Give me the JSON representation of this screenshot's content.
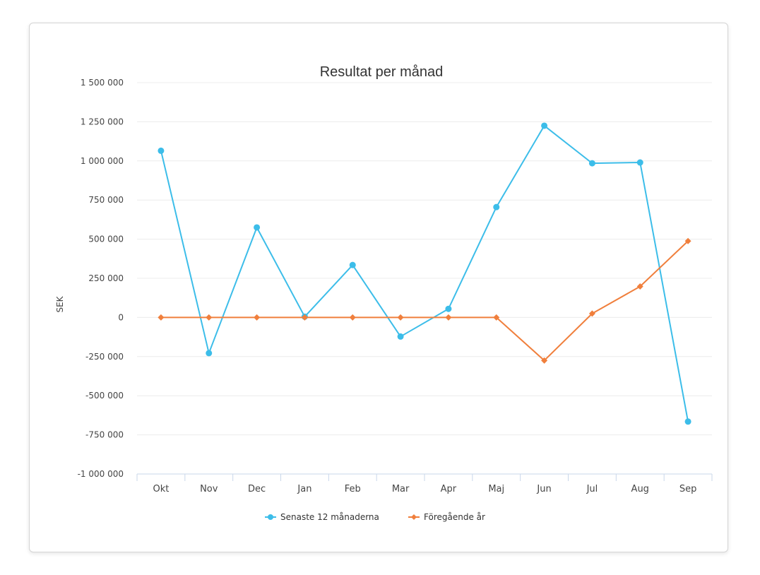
{
  "chart_data": {
    "type": "line",
    "title": "Resultat per månad",
    "xlabel": "",
    "ylabel": "SEK",
    "categories": [
      "Okt",
      "Nov",
      "Dec",
      "Jan",
      "Feb",
      "Mar",
      "Apr",
      "Maj",
      "Jun",
      "Jul",
      "Aug",
      "Sep"
    ],
    "ylim": [
      -1000000,
      1500000
    ],
    "yticks": [
      1500000,
      1250000,
      1000000,
      750000,
      500000,
      250000,
      0,
      -250000,
      -500000,
      -750000,
      -1000000
    ],
    "ytick_labels": [
      "1 500 000",
      "1 250 000",
      "1 000 000",
      "750 000",
      "500 000",
      "250 000",
      "0",
      "-250 000",
      "-500 000",
      "-750 000",
      "-1 000 000"
    ],
    "grid": true,
    "legend_position": "bottom-center",
    "series": [
      {
        "name": "Senaste 12 månaderna",
        "color": "#3cbde9",
        "marker": "circle",
        "values": [
          1065000,
          -228000,
          575000,
          5000,
          335000,
          -122000,
          55000,
          705000,
          1225000,
          985000,
          990000,
          -665000
        ]
      },
      {
        "name": "Föregående år",
        "color": "#f07f3c",
        "marker": "diamond",
        "values": [
          0,
          0,
          0,
          0,
          0,
          0,
          0,
          0,
          -275000,
          25000,
          198000,
          488000
        ]
      }
    ]
  }
}
